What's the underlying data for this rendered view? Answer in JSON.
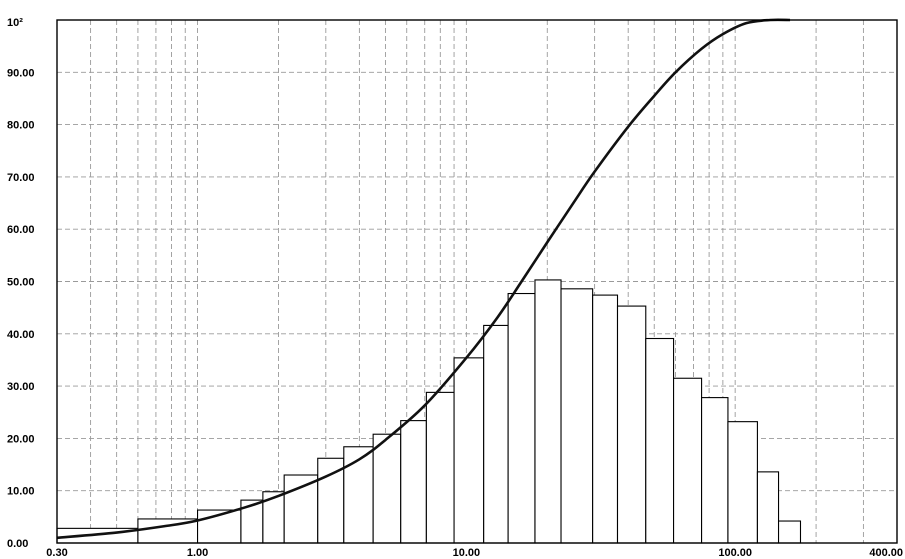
{
  "chart_data": {
    "type": "bar",
    "title": "",
    "xlabel": "",
    "ylabel": "",
    "x_scale": "log",
    "xlim": [
      0.3,
      400.0
    ],
    "ylim": [
      0,
      100
    ],
    "grid": true,
    "x_tick_labels": [
      {
        "value": 0.3,
        "label": "0.30"
      },
      {
        "value": 1,
        "label": "1.00"
      },
      {
        "value": 10,
        "label": "10.00"
      },
      {
        "value": 100,
        "label": "100.00"
      },
      {
        "value": 400,
        "label": "400.00"
      }
    ],
    "y_tick_labels": [
      {
        "value": 0,
        "label": "0.00"
      },
      {
        "value": 10,
        "label": "10.00"
      },
      {
        "value": 20,
        "label": "20.00"
      },
      {
        "value": 30,
        "label": "30.00"
      },
      {
        "value": 40,
        "label": "40.00"
      },
      {
        "value": 50,
        "label": "50.00"
      },
      {
        "value": 60,
        "label": "60.00"
      },
      {
        "value": 70,
        "label": "70.00"
      },
      {
        "value": 80,
        "label": "80.00"
      },
      {
        "value": 90,
        "label": "90.00"
      },
      {
        "value": 100,
        "label": "10²"
      }
    ],
    "bars": [
      {
        "x_from": 0.3,
        "x_to": 0.6,
        "value": 2.8
      },
      {
        "x_from": 0.6,
        "x_to": 1.0,
        "value": 4.6
      },
      {
        "x_from": 1.0,
        "x_to": 1.45,
        "value": 6.3
      },
      {
        "x_from": 1.45,
        "x_to": 1.75,
        "value": 8.2
      },
      {
        "x_from": 1.75,
        "x_to": 2.1,
        "value": 9.8
      },
      {
        "x_from": 2.1,
        "x_to": 2.8,
        "value": 13.0
      },
      {
        "x_from": 2.8,
        "x_to": 3.5,
        "value": 16.2
      },
      {
        "x_from": 3.5,
        "x_to": 4.5,
        "value": 18.4
      },
      {
        "x_from": 4.5,
        "x_to": 5.7,
        "value": 20.8
      },
      {
        "x_from": 5.7,
        "x_to": 7.1,
        "value": 23.4
      },
      {
        "x_from": 7.1,
        "x_to": 9.0,
        "value": 28.8
      },
      {
        "x_from": 9.0,
        "x_to": 11.6,
        "value": 35.4
      },
      {
        "x_from": 11.6,
        "x_to": 14.3,
        "value": 41.6
      },
      {
        "x_from": 14.3,
        "x_to": 18.0,
        "value": 47.7
      },
      {
        "x_from": 18.0,
        "x_to": 22.5,
        "value": 50.3
      },
      {
        "x_from": 22.5,
        "x_to": 29.5,
        "value": 48.6
      },
      {
        "x_from": 29.5,
        "x_to": 36.5,
        "value": 47.4
      },
      {
        "x_from": 36.5,
        "x_to": 46.5,
        "value": 45.3
      },
      {
        "x_from": 46.5,
        "x_to": 59.0,
        "value": 39.1
      },
      {
        "x_from": 59.0,
        "x_to": 75.0,
        "value": 31.5
      },
      {
        "x_from": 75.0,
        "x_to": 94.0,
        "value": 27.8
      },
      {
        "x_from": 94.0,
        "x_to": 121.0,
        "value": 23.2
      },
      {
        "x_from": 121.0,
        "x_to": 145.0,
        "value": 13.6
      },
      {
        "x_from": 145.0,
        "x_to": 175.0,
        "value": 4.2
      }
    ],
    "cumulative_curve": {
      "x": [
        0.3,
        0.5,
        0.75,
        1.0,
        1.5,
        2.0,
        3.0,
        4.0,
        5.0,
        7.0,
        10.0,
        13.0,
        16.0,
        20.0,
        25.0,
        30.0,
        40.0,
        50.0,
        60.0,
        75.0,
        90.0,
        110.0,
        135.0,
        160.0
      ],
      "y": [
        1.0,
        2.0,
        3.2,
        4.3,
        6.8,
        9.0,
        12.7,
        16.0,
        19.7,
        26.3,
        35.4,
        43.0,
        49.9,
        57.5,
        65.0,
        71.0,
        79.6,
        85.5,
        90.0,
        94.5,
        97.3,
        99.4,
        100.0,
        100.0
      ]
    }
  }
}
